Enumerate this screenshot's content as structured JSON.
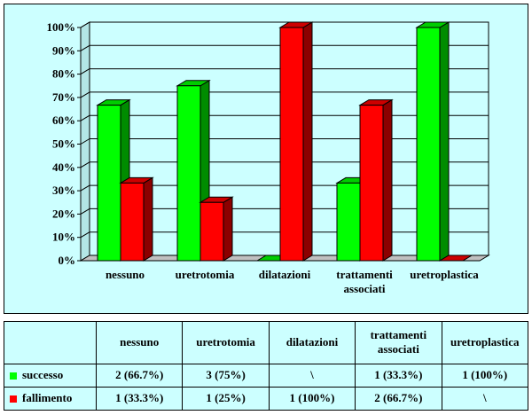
{
  "colors": {
    "background": "#ccffff",
    "successo": "#00ff00",
    "fallimento": "#ff0000"
  },
  "chart_data": {
    "type": "bar",
    "categories": [
      "nessuno",
      "uretrotomia",
      "dilatazioni",
      "trattamenti associati",
      "uretroplastica"
    ],
    "category_lines": [
      [
        "nessuno"
      ],
      [
        "uretrotomia"
      ],
      [
        "dilatazioni"
      ],
      [
        "trattamenti",
        "associati"
      ],
      [
        "uretroplastica"
      ]
    ],
    "series": [
      {
        "name": "successo",
        "values": [
          66.7,
          75,
          0,
          33.3,
          100
        ]
      },
      {
        "name": "fallimento",
        "values": [
          33.3,
          25,
          100,
          66.7,
          0
        ]
      }
    ],
    "ylim": [
      0,
      100
    ],
    "yticks": [
      "0%",
      "10%",
      "20%",
      "30%",
      "40%",
      "50%",
      "60%",
      "70%",
      "80%",
      "90%",
      "100%"
    ],
    "grid": true,
    "legend": "table-below"
  },
  "table": {
    "header": [
      "nessuno",
      "uretrotomia",
      "dilatazioni",
      "trattamenti associati",
      "uretroplastica"
    ],
    "rows": [
      {
        "label": "successo",
        "cells": [
          "2 (66.7%)",
          "3 (75%)",
          "\\",
          "1 (33.3%)",
          "1 (100%)"
        ]
      },
      {
        "label": "fallimento",
        "cells": [
          "1 (33.3%)",
          "1 (25%)",
          "1 (100%)",
          "2 (66.7%)",
          "\\"
        ]
      }
    ]
  }
}
